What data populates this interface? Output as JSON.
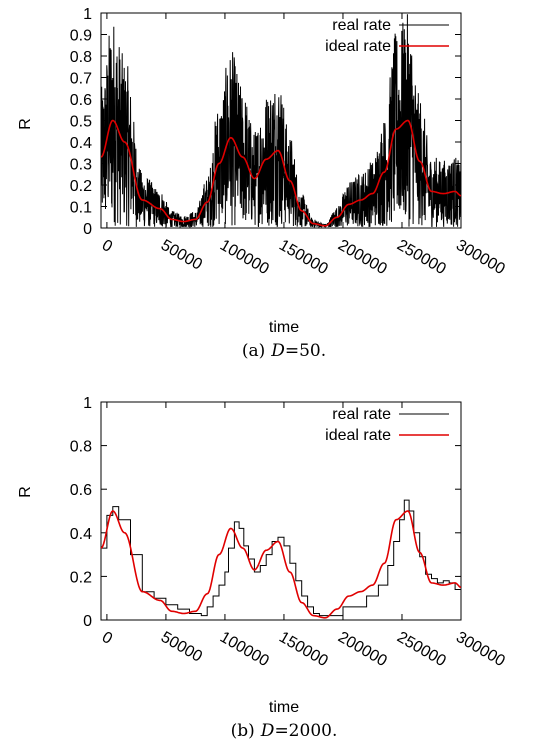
{
  "chart_data": [
    {
      "type": "line",
      "ylabel": "R",
      "xlabel": "time",
      "caption_prefix": "(a)",
      "caption_var": "D",
      "caption_value": "=50.",
      "xlim": [
        -5000,
        300000
      ],
      "ylim": [
        0,
        1
      ],
      "x_ticks": [
        "0",
        "50000",
        "100000",
        "150000",
        "200000",
        "250000",
        "300000"
      ],
      "x_tick_values": [
        0,
        50000,
        100000,
        150000,
        200000,
        250000,
        300000
      ],
      "y_ticks": [
        "0",
        "0.1",
        "0.2",
        "0.3",
        "0.4",
        "0.5",
        "0.6",
        "0.7",
        "0.8",
        "0.9",
        "1"
      ],
      "y_tick_values": [
        0,
        0.1,
        0.2,
        0.3,
        0.4,
        0.5,
        0.6,
        0.7,
        0.8,
        0.9,
        1
      ],
      "legend_position": "top-right",
      "series": [
        {
          "name": "real rate",
          "color": "#000000",
          "style": "noisy",
          "noise_scale": 0.45
        },
        {
          "name": "ideal rate",
          "color": "#e00000",
          "style": "smooth",
          "x": [
            -5000,
            5000,
            15000,
            30000,
            45000,
            55000,
            65000,
            75000,
            85000,
            95000,
            105000,
            115000,
            125000,
            135000,
            145000,
            155000,
            165000,
            175000,
            185000,
            195000,
            205000,
            215000,
            225000,
            235000,
            245000,
            255000,
            265000,
            275000,
            285000,
            295000,
            300000
          ],
          "y": [
            0.33,
            0.5,
            0.4,
            0.13,
            0.09,
            0.04,
            0.03,
            0.04,
            0.12,
            0.3,
            0.42,
            0.33,
            0.23,
            0.32,
            0.36,
            0.22,
            0.08,
            0.02,
            0.01,
            0.05,
            0.11,
            0.13,
            0.16,
            0.26,
            0.46,
            0.5,
            0.31,
            0.17,
            0.16,
            0.17,
            0.15
          ]
        }
      ]
    },
    {
      "type": "line",
      "ylabel": "R",
      "xlabel": "time",
      "caption_prefix": "(b)",
      "caption_var": "D",
      "caption_value": "=2000.",
      "xlim": [
        -5000,
        300000
      ],
      "ylim": [
        0,
        1
      ],
      "x_ticks": [
        "0",
        "50000",
        "100000",
        "150000",
        "200000",
        "250000",
        "300000"
      ],
      "x_tick_values": [
        0,
        50000,
        100000,
        150000,
        200000,
        250000,
        300000
      ],
      "y_ticks": [
        "0",
        "0.2",
        "0.4",
        "0.6",
        "0.8",
        "1"
      ],
      "y_tick_values": [
        0,
        0.2,
        0.4,
        0.6,
        0.8,
        1
      ],
      "legend_position": "top-right",
      "series": [
        {
          "name": "real rate",
          "color": "#000000",
          "style": "step",
          "x": [
            -5000,
            0,
            5000,
            10000,
            20000,
            30000,
            40000,
            50000,
            60000,
            70000,
            80000,
            85000,
            90000,
            95000,
            100000,
            103000,
            108000,
            112000,
            116000,
            120000,
            125000,
            130000,
            135000,
            140000,
            145000,
            150000,
            155000,
            160000,
            165000,
            170000,
            175000,
            180000,
            185000,
            200000,
            220000,
            230000,
            238000,
            243000,
            248000,
            252000,
            256000,
            260000,
            265000,
            270000,
            275000,
            280000,
            285000,
            290000,
            295000
          ],
          "y": [
            0.33,
            0.48,
            0.52,
            0.46,
            0.3,
            0.13,
            0.1,
            0.07,
            0.05,
            0.03,
            0.02,
            0.06,
            0.11,
            0.16,
            0.22,
            0.33,
            0.45,
            0.42,
            0.34,
            0.28,
            0.22,
            0.25,
            0.3,
            0.36,
            0.38,
            0.34,
            0.26,
            0.18,
            0.11,
            0.06,
            0.03,
            0.02,
            0.02,
            0.06,
            0.11,
            0.16,
            0.25,
            0.36,
            0.46,
            0.55,
            0.5,
            0.4,
            0.29,
            0.21,
            0.19,
            0.17,
            0.18,
            0.17,
            0.14
          ]
        },
        {
          "name": "ideal rate",
          "color": "#e00000",
          "style": "smooth",
          "x": [
            -5000,
            5000,
            15000,
            30000,
            45000,
            55000,
            65000,
            75000,
            85000,
            95000,
            105000,
            115000,
            125000,
            135000,
            145000,
            155000,
            165000,
            175000,
            185000,
            195000,
            205000,
            215000,
            225000,
            235000,
            245000,
            255000,
            265000,
            275000,
            285000,
            295000,
            300000
          ],
          "y": [
            0.33,
            0.5,
            0.4,
            0.13,
            0.09,
            0.04,
            0.03,
            0.04,
            0.12,
            0.3,
            0.42,
            0.33,
            0.23,
            0.32,
            0.36,
            0.22,
            0.08,
            0.02,
            0.01,
            0.05,
            0.11,
            0.13,
            0.16,
            0.26,
            0.46,
            0.5,
            0.31,
            0.17,
            0.16,
            0.17,
            0.15
          ]
        }
      ]
    }
  ]
}
